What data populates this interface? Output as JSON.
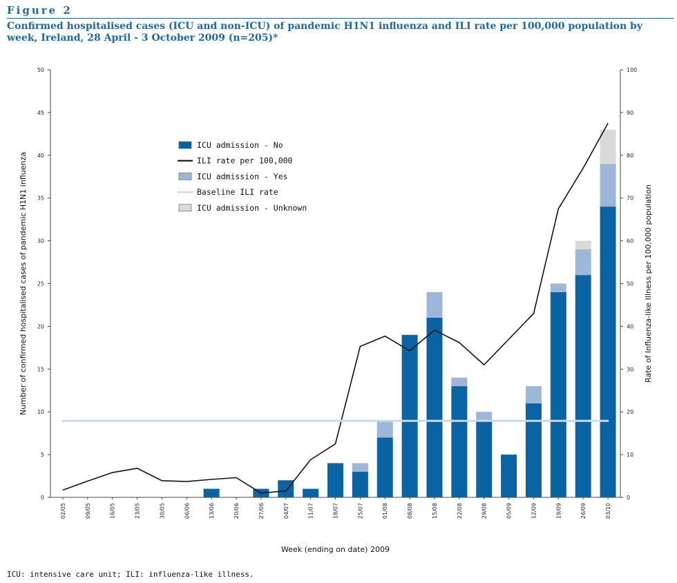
{
  "figure": {
    "label": "Figure 2",
    "title": "Confirmed hospitalised cases (ICU and non-ICU) of pandemic H1N1 influenza and ILI rate per 100,000 population by week, Ireland, 28 April - 3 October 2009 (n=205)*"
  },
  "footnote": "ICU: intensive care unit; ILI: influenza-like illness.",
  "chart_data": {
    "type": "bar",
    "stacked": true,
    "xlabel": "Week  (ending on date) 2009",
    "ylabel": "Number of confirmed hospitalised cases of pandemic H1N1 influenza",
    "y2label": "Rate of Influenza-like Illness per 100,000 population",
    "ylim": [
      0,
      50
    ],
    "y2lim": [
      0,
      100
    ],
    "yticks": [
      0,
      5,
      10,
      15,
      20,
      25,
      30,
      35,
      40,
      45,
      50
    ],
    "y2ticks": [
      0,
      10,
      20,
      30,
      40,
      50,
      60,
      70,
      80,
      90,
      100
    ],
    "categories": [
      "02/05",
      "09/05",
      "16/05",
      "23/05",
      "30/05",
      "06/06",
      "13/06",
      "20/06",
      "27/06",
      "04/07",
      "11/07",
      "18/07",
      "25/07",
      "01/08",
      "08/08",
      "15/08",
      "22/08",
      "29/08",
      "05/09",
      "12/09",
      "19/09",
      "26/09",
      "03/10"
    ],
    "series": [
      {
        "name": "ICU admission - No",
        "kind": "bar",
        "axis": "left",
        "color": "#0a64a4",
        "values": [
          0,
          0,
          0,
          0,
          0,
          0,
          1,
          0,
          1,
          2,
          1,
          4,
          3,
          7,
          19,
          21,
          13,
          9,
          5,
          11,
          24,
          26,
          34
        ]
      },
      {
        "name": "ICU admission - Yes",
        "kind": "bar",
        "axis": "left",
        "color": "#9db7db",
        "values": [
          0,
          0,
          0,
          0,
          0,
          0,
          0,
          0,
          0,
          0,
          0,
          0,
          1,
          2,
          0,
          3,
          1,
          1,
          0,
          2,
          1,
          3,
          5
        ]
      },
      {
        "name": "ICU admission - Unknown",
        "kind": "bar",
        "axis": "left",
        "color": "#d9d9d9",
        "values": [
          0,
          0,
          0,
          0,
          0,
          0,
          0,
          0,
          0,
          0,
          0,
          0,
          0,
          0,
          0,
          0,
          0,
          0,
          0,
          0,
          0,
          1,
          4
        ]
      },
      {
        "name": "ILI rate per 100,000",
        "kind": "line",
        "axis": "right",
        "color": "#111111",
        "values": [
          1.7,
          3.8,
          5.8,
          6.8,
          3.9,
          3.7,
          4.2,
          4.6,
          1.0,
          1.5,
          8.8,
          12.5,
          35.3,
          37.7,
          34.3,
          39.1,
          36.2,
          31.0,
          37.0,
          43.0,
          67.5,
          77.0,
          87.5
        ]
      },
      {
        "name": "Baseline ILI rate",
        "kind": "line",
        "axis": "right",
        "color": "#c6d9ee",
        "values": [
          17.9,
          17.9,
          17.9,
          17.9,
          17.9,
          17.9,
          17.9,
          17.9,
          17.9,
          17.9,
          17.9,
          17.9,
          17.9,
          17.9,
          17.9,
          17.9,
          17.9,
          17.9,
          17.9,
          17.9,
          17.9,
          17.9,
          17.9
        ]
      }
    ],
    "legend": {
      "placement": "upper-left inside plot",
      "entries": [
        {
          "label": "ICU admission - No",
          "symbol": "box",
          "color": "#0a64a4"
        },
        {
          "label": "ILI rate per 100,000",
          "symbol": "line",
          "color": "#111111"
        },
        {
          "label": "ICU admission - Yes",
          "symbol": "box",
          "color": "#9db7db"
        },
        {
          "label": "Baseline ILI rate",
          "symbol": "line",
          "color": "#c6d9ee"
        },
        {
          "label": "ICU admission - Unknown",
          "symbol": "box",
          "color": "#d9d9d9"
        }
      ]
    }
  }
}
